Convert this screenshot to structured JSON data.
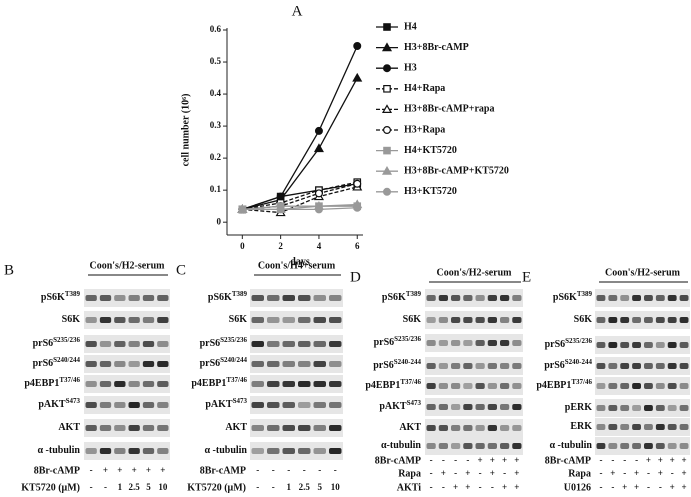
{
  "chart_data": {
    "type": "line",
    "panel_label": "A",
    "x_label": "days",
    "y_label": "cell number (10⁶)",
    "x": [
      0,
      2,
      4,
      6
    ],
    "xlim": [
      -0.8,
      6.3
    ],
    "xticks": [
      0,
      2,
      4,
      6
    ],
    "ylim": [
      -0.04,
      0.6
    ],
    "yticks": [
      0,
      0.1,
      0.2,
      0.3,
      0.4,
      0.5,
      0.6
    ],
    "legend": "right",
    "series": [
      {
        "name": "H4",
        "color": "#111111",
        "marker": "square",
        "filled": true,
        "dashed": false,
        "values": [
          0.04,
          0.08,
          0.1,
          0.12
        ]
      },
      {
        "name": "H3+8Br-cAMP",
        "color": "#111111",
        "marker": "triangle",
        "filled": true,
        "dashed": false,
        "values": [
          0.04,
          0.07,
          0.23,
          0.45
        ]
      },
      {
        "name": "H3",
        "color": "#111111",
        "marker": "circle",
        "filled": true,
        "dashed": false,
        "values": [
          0.04,
          0.08,
          0.285,
          0.55
        ]
      },
      {
        "name": "H4+Rapa",
        "color": "#111111",
        "marker": "square",
        "filled": false,
        "dashed": true,
        "values": [
          0.04,
          0.06,
          0.1,
          0.125
        ]
      },
      {
        "name": "H3+8Br-cAMP+rapa",
        "color": "#111111",
        "marker": "triangle",
        "filled": false,
        "dashed": true,
        "values": [
          0.04,
          0.03,
          0.08,
          0.11
        ]
      },
      {
        "name": "H3+Rapa",
        "color": "#111111",
        "marker": "circle",
        "filled": false,
        "dashed": true,
        "values": [
          0.04,
          0.05,
          0.09,
          0.12
        ]
      },
      {
        "name": "H4+KT5720",
        "color": "#999999",
        "marker": "square",
        "filled": true,
        "dashed": false,
        "values": [
          0.04,
          0.05,
          0.05,
          0.05
        ]
      },
      {
        "name": "H3+8Br-cAMP+KT5720",
        "color": "#999999",
        "marker": "triangle",
        "filled": true,
        "dashed": false,
        "values": [
          0.04,
          0.04,
          0.05,
          0.055
        ]
      },
      {
        "name": "H3+KT5720",
        "color": "#999999",
        "marker": "circle",
        "filled": true,
        "dashed": false,
        "values": [
          0.04,
          0.04,
          0.04,
          0.045
        ]
      }
    ]
  },
  "blots": [
    {
      "label": "B",
      "header": "Coon's/H2-serum",
      "rows": [
        {
          "name": "pS6K",
          "sup": "T389"
        },
        {
          "name": "S6K"
        },
        {
          "name": "prS6",
          "sup": "S235/236"
        },
        {
          "name": "prS6",
          "sup": "S240/244"
        },
        {
          "name": "p4EBP1",
          "sup": "T37/46"
        },
        {
          "name": "pAKT",
          "sup": "S473"
        },
        {
          "name": "AKT"
        },
        {
          "name": "α -tubulin"
        }
      ],
      "treatments": [
        {
          "name": "8Br-cAMP",
          "lanes": [
            "-",
            "+",
            "+",
            "+",
            "+",
            "+"
          ]
        },
        {
          "name": "KT5720 (μM)",
          "lanes": [
            "-",
            "-",
            "1",
            "2.5",
            "5",
            "10"
          ]
        }
      ]
    },
    {
      "label": "C",
      "header": "Coon's/H4+serum",
      "rows": [
        {
          "name": "pS6K",
          "sup": "T389"
        },
        {
          "name": "S6K"
        },
        {
          "name": "prS6",
          "sup": "S235/236"
        },
        {
          "name": "prS6",
          "sup": "S240/244"
        },
        {
          "name": "p4EBP1",
          "sup": "T37/46"
        },
        {
          "name": "pAKT",
          "sup": "S473"
        },
        {
          "name": "AKT"
        },
        {
          "name": "α -tubulin"
        }
      ],
      "treatments": [
        {
          "name": "8Br-cAMP",
          "lanes": [
            "-",
            "-",
            "-",
            "-",
            "-",
            "-"
          ]
        },
        {
          "name": "KT5720 (μM)",
          "lanes": [
            "-",
            "-",
            "1",
            "2.5",
            "5",
            "10"
          ]
        }
      ]
    },
    {
      "label": "D",
      "header": "Coon's/H2-serum",
      "rows": [
        {
          "name": "pS6K",
          "sup": "T389"
        },
        {
          "name": "S6K"
        },
        {
          "name": "prS6",
          "sup": "S235/236"
        },
        {
          "name": "prS6",
          "sup": "S240-244"
        },
        {
          "name": "p4EBP1",
          "sup": "T37/46"
        },
        {
          "name": "pAKT",
          "sup": "S473"
        },
        {
          "name": "AKT"
        },
        {
          "name": "α-tubulin"
        }
      ],
      "treatments": [
        {
          "name": "8Br-cAMP",
          "lanes": [
            "-",
            "-",
            "-",
            "-",
            "+",
            "+",
            "+",
            "+"
          ]
        },
        {
          "name": "Rapa",
          "lanes": [
            "-",
            "+",
            "-",
            "+",
            "-",
            "+",
            "-",
            "+"
          ]
        },
        {
          "name": "AKTi",
          "lanes": [
            "-",
            "-",
            "+",
            "+",
            "-",
            "-",
            "+",
            "+"
          ]
        }
      ]
    },
    {
      "label": "E",
      "header": "Coon's/H2-serum",
      "rows": [
        {
          "name": "pS6K",
          "sup": "T389"
        },
        {
          "name": "S6K"
        },
        {
          "name": "prS6",
          "sup": "S235/236"
        },
        {
          "name": "prS6",
          "sup": "S240-244"
        },
        {
          "name": "p4EBP1",
          "sup": "T37/46"
        },
        {
          "name": "pERK"
        },
        {
          "name": "ERK"
        },
        {
          "name": "α -tubulin"
        }
      ],
      "treatments": [
        {
          "name": "8Br-cAMP",
          "lanes": [
            "-",
            "-",
            "-",
            "-",
            "+",
            "+",
            "+",
            "+"
          ]
        },
        {
          "name": "Rapa",
          "lanes": [
            "-",
            "+",
            "-",
            "+",
            "-",
            "+",
            "-",
            "+"
          ]
        },
        {
          "name": "U0126",
          "lanes": [
            "-",
            "-",
            "+",
            "+",
            "-",
            "-",
            "+",
            "+"
          ]
        }
      ]
    }
  ]
}
